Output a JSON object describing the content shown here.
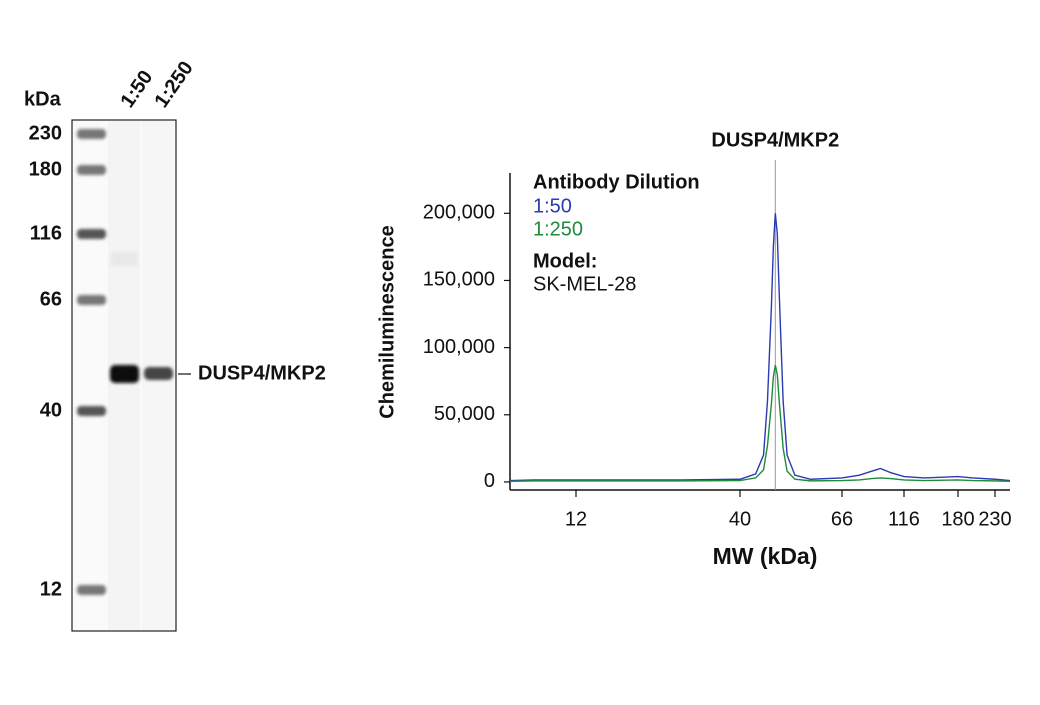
{
  "blot": {
    "unit_label": "kDa",
    "lanes": [
      "1:50",
      "1:250"
    ],
    "markers": [
      "230",
      "180",
      "116",
      "66",
      "40",
      "12"
    ],
    "band_label": "DUSP4/MKP2"
  },
  "chart_data": {
    "type": "line",
    "annotation": {
      "text": "DUSP4/MKP2",
      "x": 49
    },
    "ylabel": "Chemiluminescence",
    "xlabel": "MW (kDa)",
    "legend_title": "Antibody Dilution",
    "model_label": "Model:",
    "model": "SK-MEL-28",
    "x": [
      1,
      5,
      12,
      20,
      30,
      40,
      44,
      46,
      47,
      48,
      48.5,
      49,
      49.5,
      50,
      51,
      52,
      54,
      58,
      66,
      80,
      90,
      97,
      105,
      116,
      140,
      180,
      200,
      230,
      250
    ],
    "series": [
      {
        "name": "1:50",
        "color": "#2b3bb0",
        "values": [
          1000,
          1500,
          1500,
          1500,
          1500,
          2000,
          6000,
          20000,
          60000,
          130000,
          175000,
          200000,
          185000,
          140000,
          60000,
          20000,
          5000,
          2000,
          3000,
          5000,
          8000,
          10000,
          7000,
          4000,
          3000,
          4000,
          3000,
          2000,
          1000
        ]
      },
      {
        "name": "1:250",
        "color": "#1e8a3c",
        "values": [
          500,
          800,
          800,
          800,
          800,
          1000,
          3000,
          9000,
          27000,
          58000,
          78000,
          87000,
          80000,
          60000,
          25000,
          8000,
          2000,
          800,
          1000,
          1500,
          2500,
          3000,
          2500,
          1500,
          1000,
          1500,
          1000,
          800,
          500
        ]
      }
    ],
    "xlim": [
      1,
      250
    ],
    "xticks": [
      12,
      40,
      66,
      116,
      180,
      230
    ],
    "ylim": [
      -6000,
      230000
    ],
    "yticks": [
      0,
      {
        "value": 50000,
        "label": "50,000"
      },
      {
        "value": 100000,
        "label": "100,000"
      },
      {
        "value": 150000,
        "label": "150,000"
      },
      {
        "value": 200000,
        "label": "200,000"
      }
    ]
  }
}
